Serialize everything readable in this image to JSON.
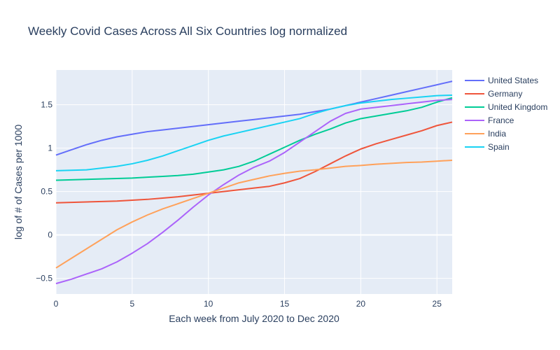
{
  "chart_data": {
    "type": "line",
    "title": "Weekly Covid Cases Across All Six Countries log normalized",
    "xlabel": "Each week from July 2020 to Dec 2020",
    "ylabel": "log of # of Cases per 1000",
    "xlim": [
      0,
      26
    ],
    "ylim": [
      -0.68,
      1.9
    ],
    "x_ticks": [
      0,
      5,
      10,
      15,
      20,
      25
    ],
    "y_ticks": [
      -0.5,
      0,
      0.5,
      1,
      1.5
    ],
    "x_tick_labels": [
      "0",
      "5",
      "10",
      "15",
      "20",
      "25"
    ],
    "y_tick_labels": [
      "−0.5",
      "0",
      "0.5",
      "1",
      "1.5"
    ],
    "grid": true,
    "legend_position": "right",
    "x": [
      0,
      1,
      2,
      3,
      4,
      5,
      6,
      7,
      8,
      9,
      10,
      11,
      12,
      13,
      14,
      15,
      16,
      17,
      18,
      19,
      20,
      21,
      22,
      23,
      24,
      25,
      26
    ],
    "series": [
      {
        "name": "United States",
        "color": "#636efa",
        "values": [
          0.92,
          0.98,
          1.04,
          1.09,
          1.13,
          1.16,
          1.19,
          1.21,
          1.23,
          1.25,
          1.27,
          1.29,
          1.31,
          1.33,
          1.35,
          1.37,
          1.39,
          1.42,
          1.45,
          1.49,
          1.53,
          1.57,
          1.61,
          1.65,
          1.69,
          1.73,
          1.77
        ]
      },
      {
        "name": "Germany",
        "color": "#ef553b",
        "values": [
          0.37,
          0.375,
          0.38,
          0.385,
          0.39,
          0.4,
          0.41,
          0.425,
          0.44,
          0.46,
          0.48,
          0.5,
          0.52,
          0.54,
          0.56,
          0.6,
          0.65,
          0.73,
          0.82,
          0.91,
          0.99,
          1.05,
          1.1,
          1.15,
          1.2,
          1.26,
          1.3
        ]
      },
      {
        "name": "United Kingdom",
        "color": "#00cc96",
        "values": [
          0.63,
          0.635,
          0.64,
          0.645,
          0.65,
          0.655,
          0.665,
          0.675,
          0.685,
          0.7,
          0.725,
          0.75,
          0.79,
          0.85,
          0.93,
          1.01,
          1.09,
          1.16,
          1.22,
          1.29,
          1.34,
          1.37,
          1.4,
          1.43,
          1.47,
          1.53,
          1.58
        ]
      },
      {
        "name": "France",
        "color": "#ab63fa",
        "values": [
          -0.56,
          -0.51,
          -0.45,
          -0.39,
          -0.31,
          -0.21,
          -0.1,
          0.03,
          0.17,
          0.32,
          0.46,
          0.58,
          0.69,
          0.78,
          0.85,
          0.95,
          1.07,
          1.19,
          1.31,
          1.4,
          1.45,
          1.47,
          1.49,
          1.51,
          1.53,
          1.55,
          1.56
        ]
      },
      {
        "name": "India",
        "color": "#ffa15a",
        "values": [
          -0.38,
          -0.27,
          -0.16,
          -0.05,
          0.06,
          0.15,
          0.23,
          0.3,
          0.36,
          0.42,
          0.48,
          0.54,
          0.6,
          0.64,
          0.68,
          0.71,
          0.735,
          0.75,
          0.77,
          0.79,
          0.8,
          0.815,
          0.825,
          0.835,
          0.84,
          0.85,
          0.86
        ]
      },
      {
        "name": "Spain",
        "color": "#19d3f3",
        "values": [
          0.74,
          0.745,
          0.75,
          0.77,
          0.79,
          0.82,
          0.86,
          0.91,
          0.97,
          1.03,
          1.09,
          1.14,
          1.18,
          1.22,
          1.26,
          1.3,
          1.34,
          1.4,
          1.45,
          1.49,
          1.52,
          1.54,
          1.56,
          1.575,
          1.59,
          1.605,
          1.61
        ]
      }
    ]
  }
}
